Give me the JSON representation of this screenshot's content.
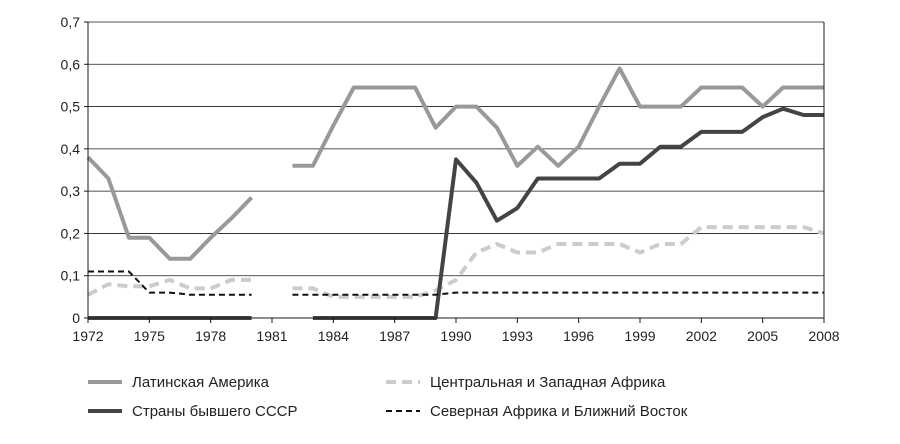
{
  "chart_data": {
    "type": "line",
    "title": "",
    "xlabel": "",
    "ylabel": "",
    "xlim": [
      1972,
      2008
    ],
    "ylim": [
      0,
      0.7
    ],
    "grid": "horizontal",
    "legend_position": "bottom",
    "x_ticks": [
      {
        "value": 1972,
        "label": "1972"
      },
      {
        "value": 1975,
        "label": "1975"
      },
      {
        "value": 1978,
        "label": "1978"
      },
      {
        "value": 1981,
        "label": "1981"
      },
      {
        "value": 1984,
        "label": "1984"
      },
      {
        "value": 1987,
        "label": "1987"
      },
      {
        "value": 1990,
        "label": "1990"
      },
      {
        "value": 1993,
        "label": "1993"
      },
      {
        "value": 1996,
        "label": "1996"
      },
      {
        "value": 1999,
        "label": "1999"
      },
      {
        "value": 2002,
        "label": "2002"
      },
      {
        "value": 2005,
        "label": "2005"
      },
      {
        "value": 2008,
        "label": "2008"
      }
    ],
    "y_ticks": [
      {
        "value": 0,
        "label": "0"
      },
      {
        "value": 0.1,
        "label": "0,1"
      },
      {
        "value": 0.2,
        "label": "0,2"
      },
      {
        "value": 0.3,
        "label": "0,3"
      },
      {
        "value": 0.4,
        "label": "0,4"
      },
      {
        "value": 0.5,
        "label": "0,5"
      },
      {
        "value": 0.6,
        "label": "0,6"
      },
      {
        "value": 0.7,
        "label": "0,7"
      }
    ],
    "series": [
      {
        "name": "Латинская Америка",
        "color": "#999999",
        "style": "solid",
        "width": 4,
        "segments": [
          [
            [
              1972,
              0.38
            ],
            [
              1973,
              0.33
            ],
            [
              1974,
              0.19
            ],
            [
              1975,
              0.19
            ],
            [
              1976,
              0.14
            ],
            [
              1977,
              0.14
            ],
            [
              1978,
              0.19
            ],
            [
              1979,
              0.235
            ],
            [
              1980,
              0.285
            ]
          ],
          [
            [
              1982,
              0.36
            ],
            [
              1983,
              0.36
            ],
            [
              1984,
              0.455
            ],
            [
              1985,
              0.545
            ],
            [
              1986,
              0.545
            ],
            [
              1987,
              0.545
            ],
            [
              1988,
              0.545
            ],
            [
              1989,
              0.45
            ],
            [
              1990,
              0.5
            ],
            [
              1991,
              0.5
            ],
            [
              1992,
              0.45
            ],
            [
              1993,
              0.36
            ],
            [
              1994,
              0.405
            ],
            [
              1995,
              0.36
            ],
            [
              1996,
              0.405
            ],
            [
              1997,
              0.5
            ],
            [
              1998,
              0.59
            ],
            [
              1999,
              0.5
            ],
            [
              2000,
              0.5
            ],
            [
              2001,
              0.5
            ],
            [
              2002,
              0.545
            ],
            [
              2003,
              0.545
            ],
            [
              2004,
              0.545
            ],
            [
              2005,
              0.5
            ],
            [
              2006,
              0.545
            ],
            [
              2007,
              0.545
            ],
            [
              2008,
              0.545
            ]
          ]
        ]
      },
      {
        "name": "Центральная и Западная Африка",
        "color": "#cccccc",
        "style": "dashed",
        "width": 4,
        "segments": [
          [
            [
              1972,
              0.055
            ],
            [
              1973,
              0.08
            ],
            [
              1974,
              0.075
            ],
            [
              1975,
              0.075
            ],
            [
              1976,
              0.09
            ],
            [
              1977,
              0.07
            ],
            [
              1978,
              0.07
            ],
            [
              1979,
              0.09
            ],
            [
              1980,
              0.09
            ]
          ],
          [
            [
              1982,
              0.07
            ],
            [
              1983,
              0.07
            ],
            [
              1984,
              0.05
            ],
            [
              1985,
              0.05
            ],
            [
              1986,
              0.05
            ],
            [
              1987,
              0.05
            ],
            [
              1988,
              0.05
            ],
            [
              1989,
              0.065
            ],
            [
              1990,
              0.09
            ],
            [
              1991,
              0.155
            ],
            [
              1992,
              0.175
            ],
            [
              1993,
              0.155
            ],
            [
              1994,
              0.155
            ],
            [
              1995,
              0.175
            ],
            [
              1996,
              0.175
            ],
            [
              1997,
              0.175
            ],
            [
              1998,
              0.175
            ],
            [
              1999,
              0.155
            ],
            [
              2000,
              0.175
            ],
            [
              2001,
              0.175
            ],
            [
              2002,
              0.215
            ],
            [
              2003,
              0.215
            ],
            [
              2004,
              0.215
            ],
            [
              2005,
              0.215
            ],
            [
              2006,
              0.215
            ],
            [
              2007,
              0.215
            ],
            [
              2008,
              0.2
            ]
          ]
        ]
      },
      {
        "name": "Страны бывшего СССР",
        "color": "#444444",
        "style": "solid",
        "width": 4,
        "segments": [
          [
            [
              1972,
              0
            ],
            [
              1973,
              0
            ],
            [
              1974,
              0
            ],
            [
              1975,
              0
            ],
            [
              1976,
              0
            ],
            [
              1977,
              0
            ],
            [
              1978,
              0
            ],
            [
              1979,
              0
            ],
            [
              1980,
              0
            ]
          ],
          [
            [
              1983,
              0
            ],
            [
              1984,
              0
            ],
            [
              1985,
              0
            ],
            [
              1986,
              0
            ],
            [
              1987,
              0
            ],
            [
              1988,
              0
            ],
            [
              1989,
              0
            ],
            [
              1990,
              0.375
            ],
            [
              1991,
              0.32
            ],
            [
              1992,
              0.23
            ],
            [
              1993,
              0.26
            ],
            [
              1994,
              0.33
            ],
            [
              1995,
              0.33
            ],
            [
              1996,
              0.33
            ],
            [
              1997,
              0.33
            ],
            [
              1998,
              0.365
            ],
            [
              1999,
              0.365
            ],
            [
              2000,
              0.405
            ],
            [
              2001,
              0.405
            ],
            [
              2002,
              0.44
            ],
            [
              2003,
              0.44
            ],
            [
              2004,
              0.44
            ],
            [
              2005,
              0.475
            ],
            [
              2006,
              0.495
            ],
            [
              2007,
              0.48
            ],
            [
              2008,
              0.48
            ]
          ]
        ]
      },
      {
        "name": "Северная Африка и Ближний Восток",
        "color": "#111111",
        "style": "dashed",
        "width": 2,
        "segments": [
          [
            [
              1972,
              0.11
            ],
            [
              1973,
              0.11
            ],
            [
              1974,
              0.11
            ],
            [
              1975,
              0.06
            ],
            [
              1976,
              0.06
            ],
            [
              1977,
              0.055
            ],
            [
              1978,
              0.055
            ],
            [
              1979,
              0.055
            ],
            [
              1980,
              0.055
            ]
          ],
          [
            [
              1982,
              0.055
            ],
            [
              1983,
              0.055
            ],
            [
              1984,
              0.055
            ],
            [
              1985,
              0.055
            ],
            [
              1986,
              0.055
            ],
            [
              1987,
              0.055
            ],
            [
              1988,
              0.055
            ],
            [
              1989,
              0.055
            ],
            [
              1990,
              0.06
            ],
            [
              1991,
              0.06
            ],
            [
              1992,
              0.06
            ],
            [
              1993,
              0.06
            ],
            [
              1994,
              0.06
            ],
            [
              1995,
              0.06
            ],
            [
              1996,
              0.06
            ],
            [
              1997,
              0.06
            ],
            [
              1998,
              0.06
            ],
            [
              1999,
              0.06
            ],
            [
              2000,
              0.06
            ],
            [
              2001,
              0.06
            ],
            [
              2002,
              0.06
            ],
            [
              2003,
              0.06
            ],
            [
              2004,
              0.06
            ],
            [
              2005,
              0.06
            ],
            [
              2006,
              0.06
            ],
            [
              2007,
              0.06
            ],
            [
              2008,
              0.06
            ]
          ]
        ]
      }
    ],
    "legend": [
      {
        "series": 0,
        "label": "Латинская Америка"
      },
      {
        "series": 1,
        "label": "Центральная и Западная Африка"
      },
      {
        "series": 2,
        "label": "Страны бывшего СССР"
      },
      {
        "series": 3,
        "label": "Северная Африка и Ближний Восток"
      }
    ]
  }
}
